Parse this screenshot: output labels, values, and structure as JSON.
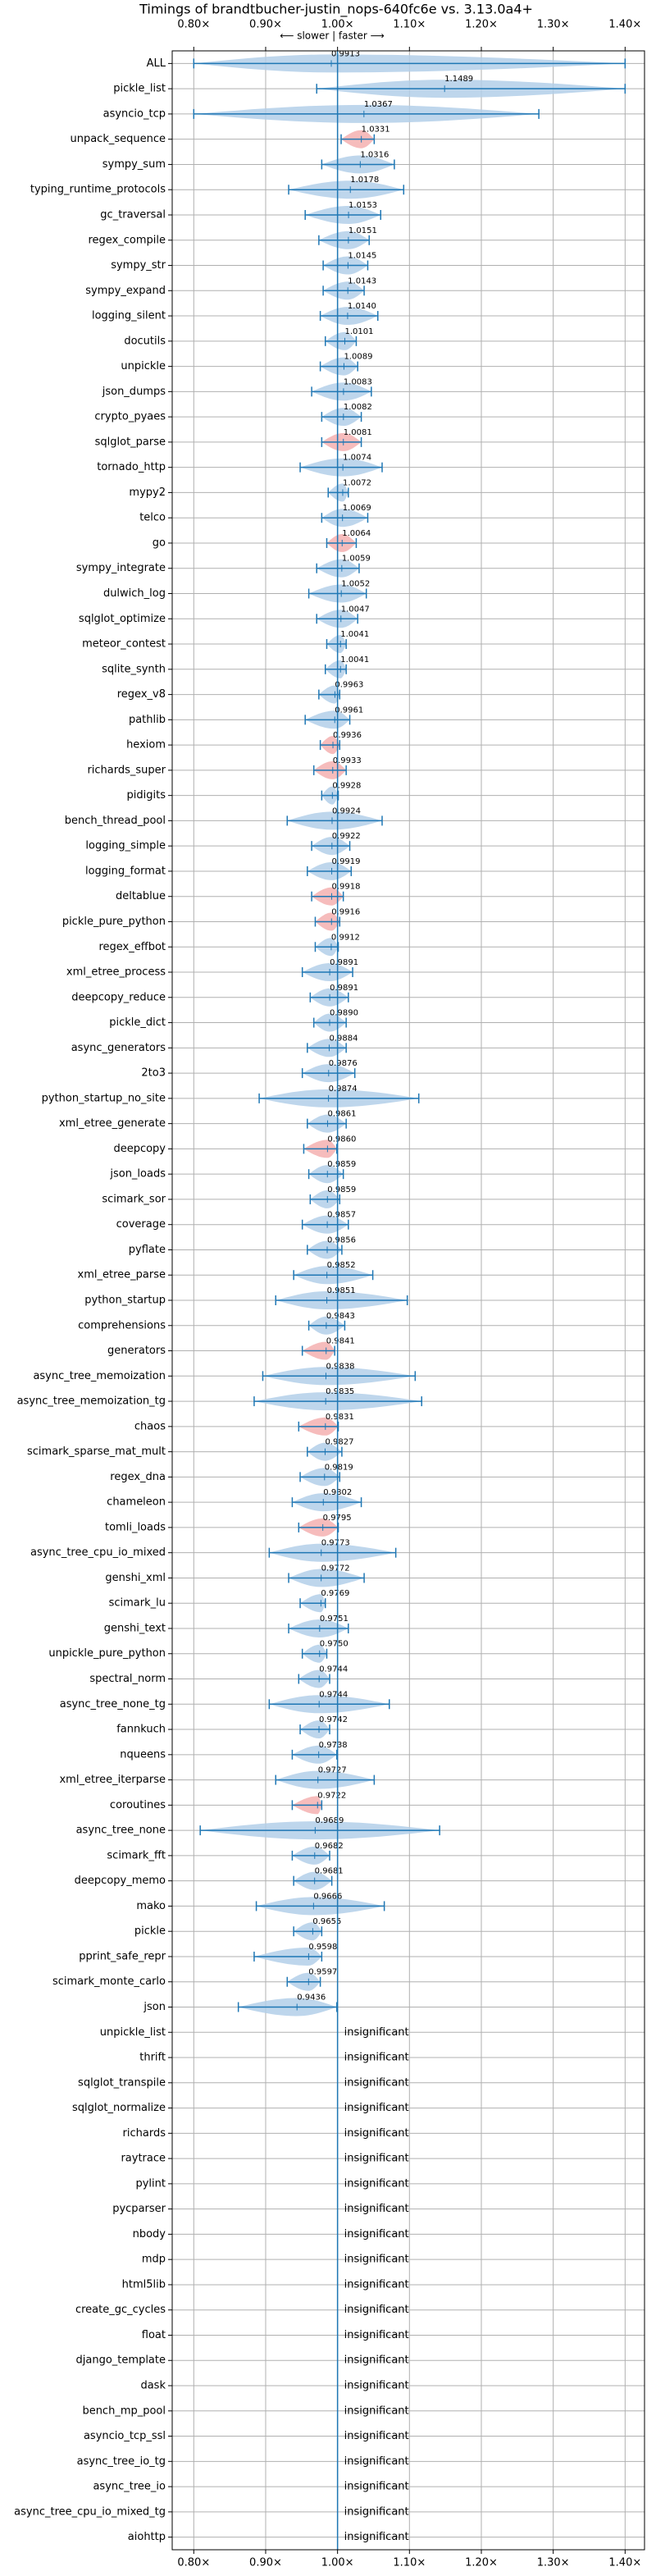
{
  "chart_data": {
    "type": "violin",
    "title": "Timings of brandtbucher-justin_nops-640fc6e vs. 3.13.0a4+",
    "direction_label": "⟵ slower | faster ⟶",
    "insignificant_label": "insignificant",
    "grid": true,
    "reference_line": 1,
    "errorbar_color": "#1f77b4",
    "xlim": [
      0.77,
      1.427
    ],
    "xticks": [
      {
        "value": 0.8,
        "label": "0.80×"
      },
      {
        "value": 0.9,
        "label": "0.90×"
      },
      {
        "value": 1.0,
        "label": "1.00×"
      },
      {
        "value": 1.1,
        "label": "1.10×"
      },
      {
        "value": 1.2,
        "label": "1.20×"
      },
      {
        "value": 1.3,
        "label": "1.30×"
      },
      {
        "value": 1.4,
        "label": "1.40×"
      }
    ],
    "categories": [
      "ALL",
      "pickle_list",
      "asyncio_tcp",
      "unpack_sequence",
      "sympy_sum",
      "typing_runtime_protocols",
      "gc_traversal",
      "regex_compile",
      "sympy_str",
      "sympy_expand",
      "logging_silent",
      "docutils",
      "unpickle",
      "json_dumps",
      "crypto_pyaes",
      "sqlglot_parse",
      "tornado_http",
      "mypy2",
      "telco",
      "go",
      "sympy_integrate",
      "dulwich_log",
      "sqlglot_optimize",
      "meteor_contest",
      "sqlite_synth",
      "regex_v8",
      "pathlib",
      "hexiom",
      "richards_super",
      "pidigits",
      "bench_thread_pool",
      "logging_simple",
      "logging_format",
      "deltablue",
      "pickle_pure_python",
      "regex_effbot",
      "xml_etree_process",
      "deepcopy_reduce",
      "pickle_dict",
      "async_generators",
      "2to3",
      "python_startup_no_site",
      "xml_etree_generate",
      "deepcopy",
      "json_loads",
      "scimark_sor",
      "coverage",
      "pyflate",
      "xml_etree_parse",
      "python_startup",
      "comprehensions",
      "generators",
      "async_tree_memoization",
      "async_tree_memoization_tg",
      "chaos",
      "scimark_sparse_mat_mult",
      "regex_dna",
      "chameleon",
      "tomli_loads",
      "async_tree_cpu_io_mixed",
      "genshi_xml",
      "scimark_lu",
      "genshi_text",
      "unpickle_pure_python",
      "spectral_norm",
      "async_tree_none_tg",
      "fannkuch",
      "nqueens",
      "xml_etree_iterparse",
      "coroutines",
      "async_tree_none",
      "scimark_fft",
      "deepcopy_memo",
      "mako",
      "pickle",
      "pprint_safe_repr",
      "scimark_monte_carlo",
      "json",
      "unpickle_list",
      "thrift",
      "sqlglot_transpile",
      "sqlglot_normalize",
      "richards",
      "raytrace",
      "pylint",
      "pycparser",
      "nbody",
      "mdp",
      "html5lib",
      "create_gc_cycles",
      "float",
      "django_template",
      "dask",
      "bench_mp_pool",
      "asyncio_tcp_ssl",
      "async_tree_io_tg",
      "async_tree_io",
      "async_tree_cpu_io_mixed_tg",
      "aiohttp"
    ],
    "values": [
      0.9913,
      1.1489,
      1.0367,
      1.0331,
      1.0316,
      1.0178,
      1.0153,
      1.0151,
      1.0145,
      1.0143,
      1.014,
      1.0101,
      1.0089,
      1.0083,
      1.0082,
      1.0081,
      1.0074,
      1.0072,
      1.0069,
      1.0064,
      1.0059,
      1.0052,
      1.0047,
      1.0041,
      1.0041,
      0.9963,
      0.9961,
      0.9936,
      0.9933,
      0.9928,
      0.9924,
      0.9922,
      0.9919,
      0.9918,
      0.9916,
      0.9912,
      0.9891,
      0.9891,
      0.989,
      0.9884,
      0.9876,
      0.9874,
      0.9861,
      0.986,
      0.9859,
      0.9859,
      0.9857,
      0.9856,
      0.9852,
      0.9851,
      0.9843,
      0.9841,
      0.9838,
      0.9835,
      0.9831,
      0.9827,
      0.9819,
      0.9802,
      0.9795,
      0.9773,
      0.9772,
      0.9769,
      0.9751,
      0.975,
      0.9744,
      0.9744,
      0.9742,
      0.9738,
      0.9727,
      0.9722,
      0.9689,
      0.9682,
      0.9681,
      0.9666,
      0.9655,
      0.9598,
      0.9597,
      0.9436,
      null,
      null,
      null,
      null,
      null,
      null,
      null,
      null,
      null,
      null,
      null,
      null,
      null,
      null,
      null,
      null,
      null,
      null,
      null,
      null,
      null
    ],
    "value_labels": [
      "0.9913",
      "1.1489",
      "1.0367",
      "1.0331",
      "1.0316",
      "1.0178",
      "1.0153",
      "1.0151",
      "1.0145",
      "1.0143",
      "1.0140",
      "1.0101",
      "1.0089",
      "1.0083",
      "1.0082",
      "1.0081",
      "1.0074",
      "1.0072",
      "1.0069",
      "1.0064",
      "1.0059",
      "1.0052",
      "1.0047",
      "1.0041",
      "1.0041",
      "0.9963",
      "0.9961",
      "0.9936",
      "0.9933",
      "0.9928",
      "0.9924",
      "0.9922",
      "0.9919",
      "0.9918",
      "0.9916",
      "0.9912",
      "0.9891",
      "0.9891",
      "0.9890",
      "0.9884",
      "0.9876",
      "0.9874",
      "0.9861",
      "0.9860",
      "0.9859",
      "0.9859",
      "0.9857",
      "0.9856",
      "0.9852",
      "0.9851",
      "0.9843",
      "0.9841",
      "0.9838",
      "0.9835",
      "0.9831",
      "0.9827",
      "0.9819",
      "0.9802",
      "0.9795",
      "0.9773",
      "0.9772",
      "0.9769",
      "0.9751",
      "0.9750",
      "0.9744",
      "0.9744",
      "0.9742",
      "0.9738",
      "0.9727",
      "0.9722",
      "0.9689",
      "0.9682",
      "0.9681",
      "0.9666",
      "0.9655",
      "0.9598",
      "0.9597",
      "0.9436",
      null,
      null,
      null,
      null,
      null,
      null,
      null,
      null,
      null,
      null,
      null,
      null,
      null,
      null,
      null,
      null,
      null,
      null,
      null,
      null,
      null
    ],
    "low": [
      0.8,
      0.971,
      0.8,
      1.005,
      0.978,
      0.932,
      0.955,
      0.974,
      0.98,
      0.98,
      0.976,
      0.983,
      0.976,
      0.964,
      0.978,
      0.978,
      0.948,
      0.987,
      0.978,
      0.985,
      0.971,
      0.96,
      0.971,
      0.985,
      0.983,
      0.974,
      0.955,
      0.976,
      0.967,
      0.978,
      0.93,
      0.964,
      0.958,
      0.964,
      0.969,
      0.969,
      0.951,
      0.962,
      0.967,
      0.958,
      0.951,
      0.891,
      0.958,
      0.953,
      0.96,
      0.962,
      0.951,
      0.958,
      0.939,
      0.914,
      0.96,
      0.951,
      0.896,
      0.884,
      0.946,
      0.958,
      0.948,
      0.937,
      0.946,
      0.905,
      0.932,
      0.948,
      0.932,
      0.951,
      0.946,
      0.905,
      0.948,
      0.937,
      0.914,
      0.937,
      0.809,
      0.937,
      0.939,
      0.887,
      0.939,
      0.884,
      0.93,
      0.862,
      null,
      null,
      null,
      null,
      null,
      null,
      null,
      null,
      null,
      null,
      null,
      null,
      null,
      null,
      null,
      null,
      null,
      null,
      null,
      null,
      null
    ],
    "high": [
      1.4,
      1.4,
      1.28,
      1.051,
      1.079,
      1.092,
      1.06,
      1.044,
      1.042,
      1.037,
      1.056,
      1.026,
      1.028,
      1.047,
      1.033,
      1.033,
      1.062,
      1.015,
      1.042,
      1.026,
      1.03,
      1.04,
      1.028,
      1.012,
      1.012,
      1.003,
      1.017,
      1.003,
      1.012,
      1.001,
      1.062,
      1.017,
      1.019,
      1.008,
      1.003,
      1.001,
      1.021,
      1.015,
      1.012,
      1.012,
      1.024,
      1.113,
      1.012,
      0.999,
      1.008,
      1.003,
      1.015,
      1.006,
      1.049,
      1.097,
      1.01,
      0.996,
      1.108,
      1.117,
      1.001,
      1.006,
      1.003,
      1.033,
      1.001,
      1.081,
      1.037,
      0.983,
      1.015,
      0.985,
      0.989,
      1.072,
      0.989,
      0.999,
      1.051,
      0.978,
      1.142,
      0.989,
      0.992,
      1.065,
      0.978,
      0.978,
      0.976,
      0.999,
      null,
      null,
      null,
      null,
      null,
      null,
      null,
      null,
      null,
      null,
      null,
      null,
      null,
      null,
      null,
      null,
      null,
      null,
      null,
      null,
      null
    ],
    "colors": [
      "#b3cfe9",
      "#b3cfe9",
      "#b3cfe9",
      "#f4b0b0",
      "#b3cfe9",
      "#b3cfe9",
      "#b3cfe9",
      "#b3cfe9",
      "#b3cfe9",
      "#b3cfe9",
      "#b3cfe9",
      "#b3cfe9",
      "#b3cfe9",
      "#b3cfe9",
      "#b3cfe9",
      "#f4b0b0",
      "#b3cfe9",
      "#b3cfe9",
      "#b3cfe9",
      "#f4b0b0",
      "#b3cfe9",
      "#b3cfe9",
      "#b3cfe9",
      "#b3cfe9",
      "#b3cfe9",
      "#b3cfe9",
      "#b3cfe9",
      "#f4b0b0",
      "#f4b0b0",
      "#b3cfe9",
      "#b3cfe9",
      "#b3cfe9",
      "#b3cfe9",
      "#f4b0b0",
      "#f4b0b0",
      "#b3cfe9",
      "#b3cfe9",
      "#b3cfe9",
      "#b3cfe9",
      "#b3cfe9",
      "#b3cfe9",
      "#b3cfe9",
      "#b3cfe9",
      "#f4b0b0",
      "#b3cfe9",
      "#b3cfe9",
      "#b3cfe9",
      "#b3cfe9",
      "#b3cfe9",
      "#b3cfe9",
      "#b3cfe9",
      "#f4b0b0",
      "#b3cfe9",
      "#b3cfe9",
      "#f4b0b0",
      "#b3cfe9",
      "#b3cfe9",
      "#b3cfe9",
      "#f4b0b0",
      "#b3cfe9",
      "#b3cfe9",
      "#b3cfe9",
      "#b3cfe9",
      "#b3cfe9",
      "#b3cfe9",
      "#b3cfe9",
      "#b3cfe9",
      "#b3cfe9",
      "#b3cfe9",
      "#f4b0b0",
      "#b3cfe9",
      "#b3cfe9",
      "#b3cfe9",
      "#b3cfe9",
      "#b3cfe9",
      "#b3cfe9",
      "#b3cfe9",
      "#b3cfe9",
      null,
      null,
      null,
      null,
      null,
      null,
      null,
      null,
      null,
      null,
      null,
      null,
      null,
      null,
      null,
      null,
      null,
      null,
      null,
      null,
      null
    ]
  }
}
